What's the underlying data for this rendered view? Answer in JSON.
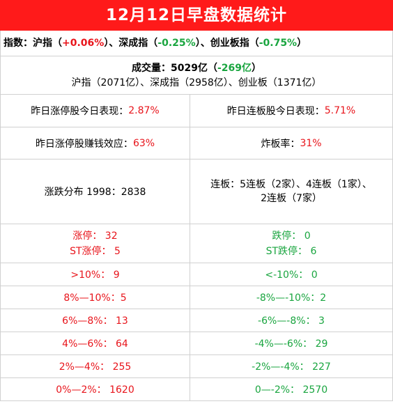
{
  "title": "12月12日早盘数据统计",
  "index": {
    "prefix": "指数：沪指（",
    "sh": "+0.06%",
    "mid1": "）、深成指（",
    "sz": "-0.25%",
    "mid2": "）、创业板指（",
    "cy": "-0.75%",
    "suffix": "）"
  },
  "volume": {
    "label": "成交量：5029亿（",
    "change": "-269亿",
    "close": "）",
    "breakdown": "沪指（2071亿）、深成指（2958亿）、创业板（1371亿）"
  },
  "stats": {
    "zt_perf_label": "昨日涨停股今日表现：",
    "zt_perf_value": "2.87%",
    "lb_perf_label": "昨日连板股今日表现：",
    "lb_perf_value": "5.71%",
    "money_label": "昨日涨停股赚钱效应：",
    "money_value": "63%",
    "blast_label": "炸板率：",
    "blast_value": "31%",
    "dist": "涨跌分布 1998：2838",
    "lianban_line1": "连板：5连板（2家）、4连板（1家）、",
    "lianban_line2": "2连板（7家）"
  },
  "limits": {
    "up": "涨停：  32",
    "st_up": "ST涨停：  5",
    "down": "跌停：     0",
    "st_down": "ST跌停：   6"
  },
  "ranges": [
    {
      "up": ">10%：  9",
      "down": "<-10%：    0"
    },
    {
      "up": "8%—10%：5",
      "down": "-8%—-10%：2"
    },
    {
      "up": "6%—8%：  13",
      "down": "-6%—-8%：  3"
    },
    {
      "up": "4%—6%：  64",
      "down": "-4%—-6%：   29"
    },
    {
      "up": "2%—4%：  255",
      "down": "-2%—-4%：   227"
    },
    {
      "up": "0%—2%：  1620",
      "down": "0—-2%：     2570"
    }
  ],
  "colors": {
    "header_bg": "#ff1a1a",
    "up": "#e8141b",
    "down": "#19a53f"
  }
}
